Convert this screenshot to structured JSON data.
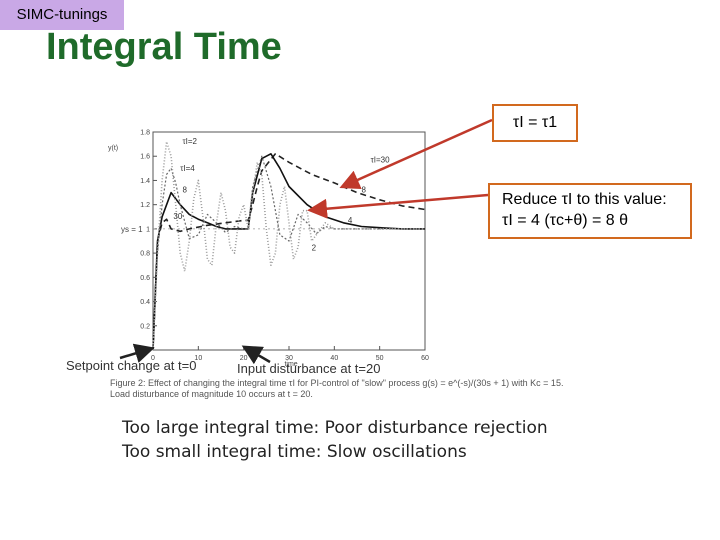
{
  "tag": "SIMC-tunings",
  "title": "Integral Time",
  "callouts": {
    "eq1": "τI = τ1",
    "eq2_line1": "Reduce τI to this value:",
    "eq2_line2": "τI = 4 (τc+θ) = 8 θ"
  },
  "chart_data": {
    "type": "line",
    "xlabel": "time",
    "ylabel": "y(t)",
    "xlim": [
      0,
      60
    ],
    "ylim": [
      0,
      1.8
    ],
    "xticks": [
      "0",
      "10",
      "20",
      "30",
      "40",
      "50",
      "60"
    ],
    "yticks": [
      "0",
      "0.2",
      "0.4",
      "0.6",
      "0.8",
      "1",
      "1.2",
      "1.4",
      "1.6",
      "1.8"
    ],
    "ys_label": "ys = 1",
    "series": [
      {
        "name": "τI=30",
        "x": [
          0,
          1,
          2,
          3,
          4,
          6,
          8,
          12,
          16,
          20,
          21,
          22,
          23,
          24,
          27,
          30,
          35,
          40,
          45,
          50,
          55,
          60
        ],
        "y": [
          0,
          0.9,
          1.05,
          1.08,
          1.0,
          0.98,
          1.0,
          1.03,
          1.05,
          1.07,
          1.07,
          1.2,
          1.35,
          1.48,
          1.62,
          1.55,
          1.45,
          1.38,
          1.3,
          1.24,
          1.19,
          1.16
        ]
      },
      {
        "name": "τI=8",
        "x": [
          0,
          1,
          2,
          3,
          4,
          6,
          8,
          10,
          12,
          14,
          16,
          18,
          20,
          21,
          22,
          24,
          26,
          28,
          30,
          34,
          38,
          42,
          46,
          50,
          55,
          60
        ],
        "y": [
          0,
          0.9,
          1.1,
          1.2,
          1.3,
          1.2,
          1.12,
          1.08,
          1.05,
          1.02,
          1.0,
          1.0,
          1.0,
          1.0,
          1.3,
          1.58,
          1.62,
          1.5,
          1.35,
          1.2,
          1.1,
          1.05,
          1.02,
          1.01,
          1.0,
          1.0
        ]
      },
      {
        "name": "τI=4",
        "x": [
          0,
          1,
          2,
          3,
          4,
          5,
          6,
          8,
          10,
          12,
          14,
          16,
          18,
          20,
          21,
          22,
          24,
          26,
          28,
          30,
          32,
          34,
          36,
          38,
          40,
          45,
          50,
          60
        ],
        "y": [
          0,
          0.8,
          1.2,
          1.45,
          1.5,
          1.38,
          1.2,
          0.92,
          0.95,
          1.12,
          1.05,
          0.97,
          1.02,
          1.0,
          1.0,
          1.35,
          1.6,
          1.35,
          0.95,
          0.9,
          1.12,
          1.05,
          0.96,
          1.02,
          1.0,
          1.0,
          1.0,
          1.0
        ]
      },
      {
        "name": "τI=2",
        "x": [
          0,
          1,
          2,
          3,
          4,
          5,
          6,
          7,
          8,
          9,
          10,
          11,
          12,
          13,
          14,
          15,
          16,
          17,
          18,
          19,
          20,
          21,
          22,
          23,
          24,
          25,
          26,
          27,
          28,
          29,
          30,
          31,
          32,
          33,
          34,
          35,
          36,
          38,
          40,
          45,
          50,
          60
        ],
        "y": [
          0,
          0.8,
          1.4,
          1.72,
          1.6,
          1.2,
          0.8,
          0.65,
          0.9,
          1.25,
          1.4,
          1.1,
          0.75,
          0.7,
          1.05,
          1.3,
          1.15,
          0.85,
          0.8,
          1.1,
          1.2,
          1.0,
          1.3,
          1.55,
          1.45,
          1.0,
          0.7,
          0.8,
          1.2,
          1.35,
          1.05,
          0.75,
          0.85,
          1.15,
          1.15,
          0.9,
          0.95,
          1.05,
          1.0,
          1.0,
          1.0,
          1.0
        ]
      }
    ]
  },
  "captions": {
    "setpoint": "Setpoint change at t=0",
    "disturbance": "Input disturbance at t=20",
    "figure_line1": "Figure 2: Effect of changing the integral time τI for PI-control of \"slow\" process g(s) = e^(-s)/(30s + 1) with Kc = 15.",
    "figure_line2": "Load disturbance of magnitude 10 occurs at t = 20."
  },
  "notes": {
    "line1": "Too large integral time: Poor disturbance rejection",
    "line2": "Too small integral time: Slow oscillations"
  },
  "colors": {
    "title": "#1f6b2a",
    "tag_bg": "#c9a8e6",
    "callout_border": "#d2691e",
    "arrow": "#c0392b"
  }
}
